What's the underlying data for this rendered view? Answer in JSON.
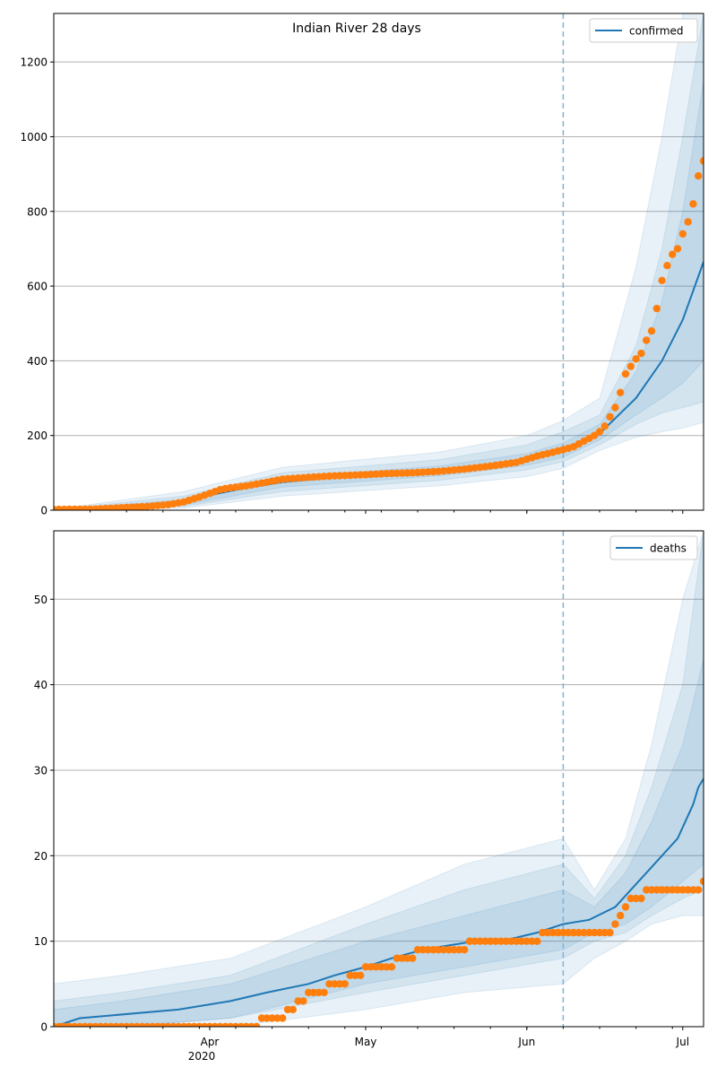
{
  "chart_data": [
    {
      "type": "line",
      "title": "Indian River 28 days",
      "x_axis": {
        "type": "date",
        "range": [
          "2020-03-02",
          "2020-07-05"
        ],
        "tick_labels": [
          "Apr",
          "May",
          "Jun",
          "Jul"
        ],
        "year_label": "2020"
      },
      "ylim": [
        0,
        1330
      ],
      "yticks": [
        0,
        200,
        400,
        600,
        800,
        1000,
        1200
      ],
      "grid": "horizontal",
      "legend": {
        "placement": "top-right",
        "entries": [
          "confirmed"
        ]
      },
      "forecast_start": "2020-06-08",
      "colors": {
        "model": "#1f77b4",
        "observed": "#ff7f0e",
        "band": "#1f77b4",
        "vline": "#7fb3d5"
      },
      "model": {
        "x": [
          "2020-03-02",
          "2020-03-10",
          "2020-03-20",
          "2020-03-27",
          "2020-04-01",
          "2020-04-08",
          "2020-04-15",
          "2020-04-25",
          "2020-05-05",
          "2020-05-15",
          "2020-05-25",
          "2020-06-01",
          "2020-06-08",
          "2020-06-15",
          "2020-06-22",
          "2020-06-27",
          "2020-07-01",
          "2020-07-05"
        ],
        "values": [
          0,
          1,
          6,
          20,
          40,
          60,
          75,
          88,
          97,
          105,
          118,
          135,
          160,
          205,
          300,
          400,
          510,
          665
        ]
      },
      "bands": [
        {
          "x": [
            "2020-03-02",
            "2020-03-27",
            "2020-04-15",
            "2020-05-15",
            "2020-06-01",
            "2020-06-08",
            "2020-06-15",
            "2020-06-22",
            "2020-06-27",
            "2020-07-01",
            "2020-07-05"
          ],
          "lower": [
            0,
            6,
            38,
            65,
            90,
            112,
            160,
            195,
            210,
            220,
            235
          ],
          "upper": [
            2,
            50,
            115,
            155,
            200,
            240,
            300,
            650,
            1000,
            1330,
            1330
          ]
        },
        {
          "x": [
            "2020-03-02",
            "2020-03-27",
            "2020-04-15",
            "2020-05-15",
            "2020-06-01",
            "2020-06-08",
            "2020-06-15",
            "2020-06-22",
            "2020-06-27",
            "2020-07-01",
            "2020-07-05"
          ],
          "lower": [
            0,
            10,
            50,
            80,
            108,
            130,
            175,
            230,
            260,
            275,
            290
          ],
          "upper": [
            1,
            38,
            100,
            135,
            175,
            210,
            255,
            440,
            700,
            1000,
            1330
          ]
        },
        {
          "x": [
            "2020-03-02",
            "2020-03-27",
            "2020-04-15",
            "2020-05-15",
            "2020-06-01",
            "2020-06-08",
            "2020-06-15",
            "2020-06-22",
            "2020-06-27",
            "2020-07-01",
            "2020-07-05"
          ],
          "lower": [
            0,
            14,
            62,
            92,
            120,
            142,
            188,
            255,
            300,
            340,
            400
          ],
          "upper": [
            1,
            28,
            88,
            118,
            152,
            180,
            230,
            370,
            560,
            800,
            1150
          ]
        }
      ],
      "observed": {
        "x": [
          "2020-03-02",
          "2020-03-10",
          "2020-03-20",
          "2020-03-24",
          "2020-03-27",
          "2020-03-30",
          "2020-04-01",
          "2020-04-03",
          "2020-04-05",
          "2020-04-08",
          "2020-04-12",
          "2020-04-15",
          "2020-04-20",
          "2020-04-25",
          "2020-05-01",
          "2020-05-05",
          "2020-05-10",
          "2020-05-15",
          "2020-05-20",
          "2020-05-25",
          "2020-05-30",
          "2020-06-03",
          "2020-06-08",
          "2020-06-10",
          "2020-06-12",
          "2020-06-14",
          "2020-06-15",
          "2020-06-16",
          "2020-06-17",
          "2020-06-18",
          "2020-06-19",
          "2020-06-20",
          "2020-06-21",
          "2020-06-22",
          "2020-06-23",
          "2020-06-24",
          "2020-06-25",
          "2020-06-26",
          "2020-06-27",
          "2020-06-28",
          "2020-06-29",
          "2020-06-30",
          "2020-07-01",
          "2020-07-02",
          "2020-07-03",
          "2020-07-04",
          "2020-07-05"
        ],
        "values": [
          2,
          3,
          10,
          15,
          22,
          35,
          45,
          55,
          60,
          65,
          75,
          83,
          88,
          92,
          95,
          98,
          100,
          104,
          110,
          118,
          128,
          145,
          162,
          170,
          185,
          200,
          210,
          225,
          250,
          275,
          315,
          365,
          385,
          405,
          420,
          455,
          480,
          540,
          615,
          655,
          685,
          700,
          740,
          772,
          820,
          895,
          935
        ]
      }
    },
    {
      "type": "line",
      "x_axis": {
        "type": "date",
        "range": [
          "2020-03-02",
          "2020-07-05"
        ],
        "tick_labels": [
          "Apr",
          "May",
          "Jun",
          "Jul"
        ],
        "year_label": "2020"
      },
      "ylim": [
        0,
        58
      ],
      "yticks": [
        0,
        10,
        20,
        30,
        40,
        50
      ],
      "grid": "horizontal",
      "legend": {
        "placement": "top-right",
        "entries": [
          "deaths"
        ]
      },
      "forecast_start": "2020-06-08",
      "colors": {
        "model": "#1f77b4",
        "observed": "#ff7f0e",
        "band": "#1f77b4",
        "vline": "#7fb3d5"
      },
      "model": {
        "x": [
          "2020-03-02",
          "2020-03-07",
          "2020-03-26",
          "2020-04-05",
          "2020-04-12",
          "2020-04-20",
          "2020-04-25",
          "2020-05-01",
          "2020-05-06",
          "2020-05-12",
          "2020-05-17",
          "2020-05-22",
          "2020-05-27",
          "2020-06-03",
          "2020-06-08",
          "2020-06-13",
          "2020-06-18",
          "2020-06-21",
          "2020-06-24",
          "2020-06-27",
          "2020-06-30",
          "2020-07-03",
          "2020-07-04",
          "2020-07-05"
        ],
        "values": [
          0,
          1,
          2,
          3,
          4,
          5,
          6,
          7,
          8,
          9,
          9.5,
          10,
          10,
          11,
          12,
          12.5,
          14,
          16,
          18,
          20,
          22,
          26,
          28,
          29
        ]
      },
      "bands": [
        {
          "x": [
            "2020-03-02",
            "2020-03-15",
            "2020-04-05",
            "2020-05-01",
            "2020-05-20",
            "2020-06-08",
            "2020-06-14",
            "2020-06-20",
            "2020-06-25",
            "2020-07-01",
            "2020-07-05"
          ],
          "lower": [
            0,
            0,
            0,
            2,
            4,
            5,
            8,
            10,
            12,
            13,
            13
          ],
          "upper": [
            5,
            6,
            8,
            14,
            19,
            22,
            16,
            22,
            33,
            50,
            58
          ]
        },
        {
          "x": [
            "2020-03-02",
            "2020-03-15",
            "2020-04-05",
            "2020-05-01",
            "2020-05-20",
            "2020-06-08",
            "2020-06-14",
            "2020-06-20",
            "2020-06-25",
            "2020-07-01",
            "2020-07-05"
          ],
          "lower": [
            0,
            0,
            1,
            4,
            6,
            8,
            10,
            11,
            13,
            15,
            16
          ],
          "upper": [
            3,
            4,
            6,
            12,
            16,
            19,
            15,
            20,
            28,
            40,
            58
          ]
        },
        {
          "x": [
            "2020-03-02",
            "2020-03-15",
            "2020-04-05",
            "2020-05-01",
            "2020-05-20",
            "2020-06-08",
            "2020-06-14",
            "2020-06-20",
            "2020-06-25",
            "2020-07-01",
            "2020-07-05"
          ],
          "lower": [
            0,
            0,
            1,
            5,
            7,
            9,
            11,
            12,
            14,
            17,
            19
          ],
          "upper": [
            2,
            3,
            5,
            10,
            13,
            16,
            14,
            18,
            24,
            33,
            43
          ]
        }
      ],
      "observed": {
        "x": [
          "2020-03-02",
          "2020-04-10",
          "2020-04-11",
          "2020-04-15",
          "2020-04-17",
          "2020-04-19",
          "2020-04-20",
          "2020-04-23",
          "2020-04-24",
          "2020-04-25",
          "2020-04-30",
          "2020-05-01",
          "2020-05-06",
          "2020-05-07",
          "2020-05-10",
          "2020-05-11",
          "2020-05-30",
          "2020-06-08",
          "2020-06-17",
          "2020-06-18",
          "2020-06-19",
          "2020-06-20",
          "2020-06-21",
          "2020-06-22",
          "2020-06-26",
          "2020-07-04",
          "2020-07-05"
        ],
        "values": [
          0,
          0,
          1,
          1,
          2,
          3,
          4,
          4,
          5,
          5,
          6,
          7,
          7,
          8,
          8,
          9,
          10,
          11,
          11,
          12,
          13,
          14,
          15,
          15,
          16,
          16,
          17
        ]
      }
    }
  ]
}
